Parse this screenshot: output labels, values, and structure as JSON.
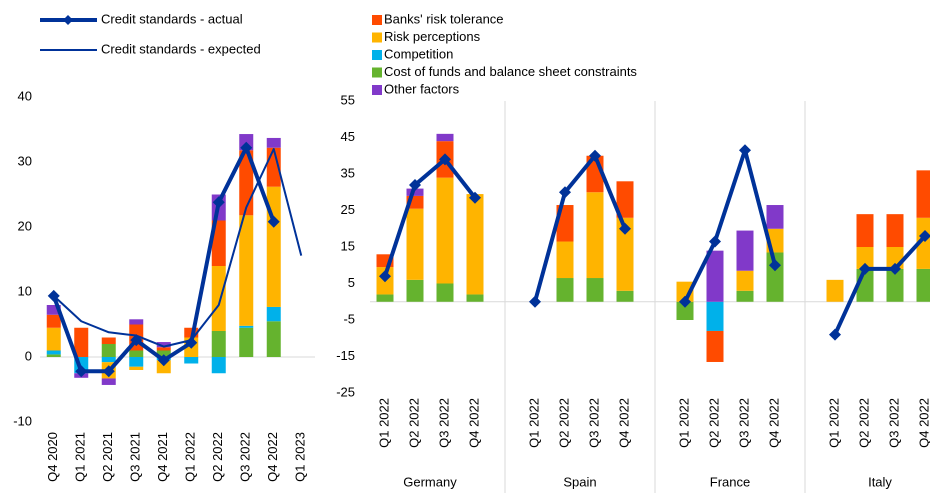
{
  "chart_data": [
    {
      "type": "bar",
      "categories": [
        "Q4 2020",
        "Q1 2021",
        "Q2 2021",
        "Q3 2021",
        "Q4 2021",
        "Q1 2022",
        "Q2 2022",
        "Q3 2022",
        "Q4 2022",
        "Q1 2023"
      ],
      "ylim": [
        -10,
        40
      ],
      "yticks": [
        -10,
        0,
        10,
        20,
        30,
        40
      ],
      "series": [
        {
          "color": "#ff4b00",
          "values": [
            2,
            4.5,
            1,
            4,
            0.5,
            1.5,
            7,
            10,
            6,
            null
          ]
        },
        {
          "color": "#ffb400",
          "values": [
            3.5,
            0,
            -2.5,
            -0.5,
            -2,
            3,
            10,
            17,
            18.5,
            null
          ]
        },
        {
          "color": "#00b1ea",
          "values": [
            0.6,
            -2.5,
            -0.8,
            -1.5,
            -0.5,
            -1,
            -2.5,
            0.3,
            2.2,
            null
          ]
        },
        {
          "color": "#65b32e",
          "values": [
            0.4,
            0,
            2,
            1,
            1,
            0,
            4,
            4.5,
            5.5,
            null
          ]
        },
        {
          "color": "#8139c9",
          "values": [
            1.5,
            -0.7,
            -1,
            0.8,
            0.8,
            0,
            4,
            2.5,
            1.5,
            null
          ]
        }
      ],
      "lines": [
        {
          "name": "Credit standards - actual",
          "color": "#003299",
          "marker": "diamond",
          "values": [
            9.4,
            -2.2,
            -2.2,
            2.6,
            -0.5,
            2.2,
            23.8,
            32.2,
            20.8,
            null
          ]
        },
        {
          "name": "Credit standards - expected",
          "color": "#003299",
          "values": [
            9.4,
            5.5,
            3.8,
            3.3,
            1.6,
            2.6,
            8,
            23,
            32,
            15.6
          ]
        }
      ]
    },
    {
      "type": "bar",
      "categories": [
        "Q1 2022",
        "Q2 2022",
        "Q3 2022",
        "Q4 2022",
        "Q1 2022",
        "Q2 2022",
        "Q3 2022",
        "Q4 2022",
        "Q1 2022",
        "Q2 2022",
        "Q3 2022",
        "Q4 2022",
        "Q1 2022",
        "Q2 2022",
        "Q3 2022",
        "Q4 2022"
      ],
      "groups": [
        "Germany",
        "Spain",
        "France",
        "Italy"
      ],
      "ylim": [
        -25,
        55
      ],
      "yticks": [
        -25,
        -15,
        -5,
        5,
        15,
        25,
        35,
        45,
        55
      ],
      "series": [
        {
          "name": "Banks' risk tolerance",
          "color": "#ff4b00",
          "values": [
            3.5,
            3.5,
            10,
            0,
            0,
            10,
            10,
            10,
            0,
            -8.5,
            0,
            0,
            0,
            9,
            9,
            13
          ]
        },
        {
          "name": "Risk perceptions",
          "color": "#ffb400",
          "values": [
            7.5,
            19.5,
            29,
            27.5,
            0,
            10,
            23.5,
            20,
            5.5,
            0,
            5.5,
            6.5,
            6,
            6,
            6,
            14
          ]
        },
        {
          "name": "Competition",
          "color": "#00b1ea",
          "values": [
            0,
            0,
            0,
            0,
            0,
            0,
            0,
            0,
            0,
            -8,
            0,
            0,
            0,
            0,
            0,
            0
          ]
        },
        {
          "name": "Cost of funds and balance sheet constraints",
          "color": "#65b32e",
          "values": [
            2,
            6,
            5,
            2,
            0,
            6.5,
            6.5,
            3,
            -5,
            0,
            3,
            13.5,
            0,
            9,
            9,
            9
          ]
        },
        {
          "name": "Other factors",
          "color": "#8139c9",
          "values": [
            0,
            2,
            2,
            0,
            0,
            0,
            0,
            0,
            0,
            14,
            11,
            6.5,
            0,
            0,
            0,
            0
          ]
        }
      ],
      "lines": [
        {
          "color": "#003299",
          "marker": "diamond",
          "values": [
            7,
            32,
            39,
            28.5,
            0,
            30,
            40,
            20,
            0,
            16.5,
            41.5,
            10,
            -9,
            9,
            9,
            18
          ]
        }
      ]
    }
  ]
}
